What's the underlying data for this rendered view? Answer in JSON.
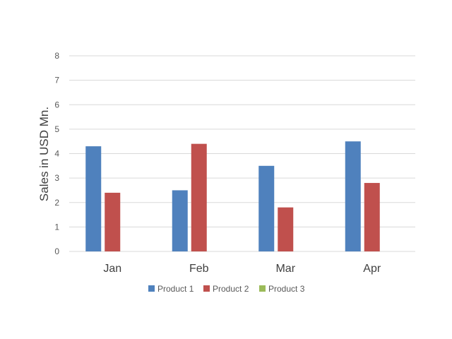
{
  "chart_data": {
    "type": "bar",
    "categories": [
      "Jan",
      "Feb",
      "Mar",
      "Apr"
    ],
    "series": [
      {
        "name": "Product 1",
        "color": "#4f81bd",
        "values": [
          4.3,
          2.5,
          3.5,
          4.5
        ]
      },
      {
        "name": "Product 2",
        "color": "#c0504d",
        "values": [
          2.4,
          4.4,
          1.8,
          2.8
        ]
      },
      {
        "name": "Product 3",
        "color": "#9bbb59",
        "values": [
          null,
          null,
          null,
          null
        ]
      }
    ],
    "ylabel": "Sales in USD Mn.",
    "ylim": [
      0,
      8
    ],
    "yticks": [
      "0",
      "1",
      "2",
      "3",
      "4",
      "5",
      "6",
      "7",
      "8"
    ],
    "grid": true,
    "legend_position": "bottom"
  }
}
